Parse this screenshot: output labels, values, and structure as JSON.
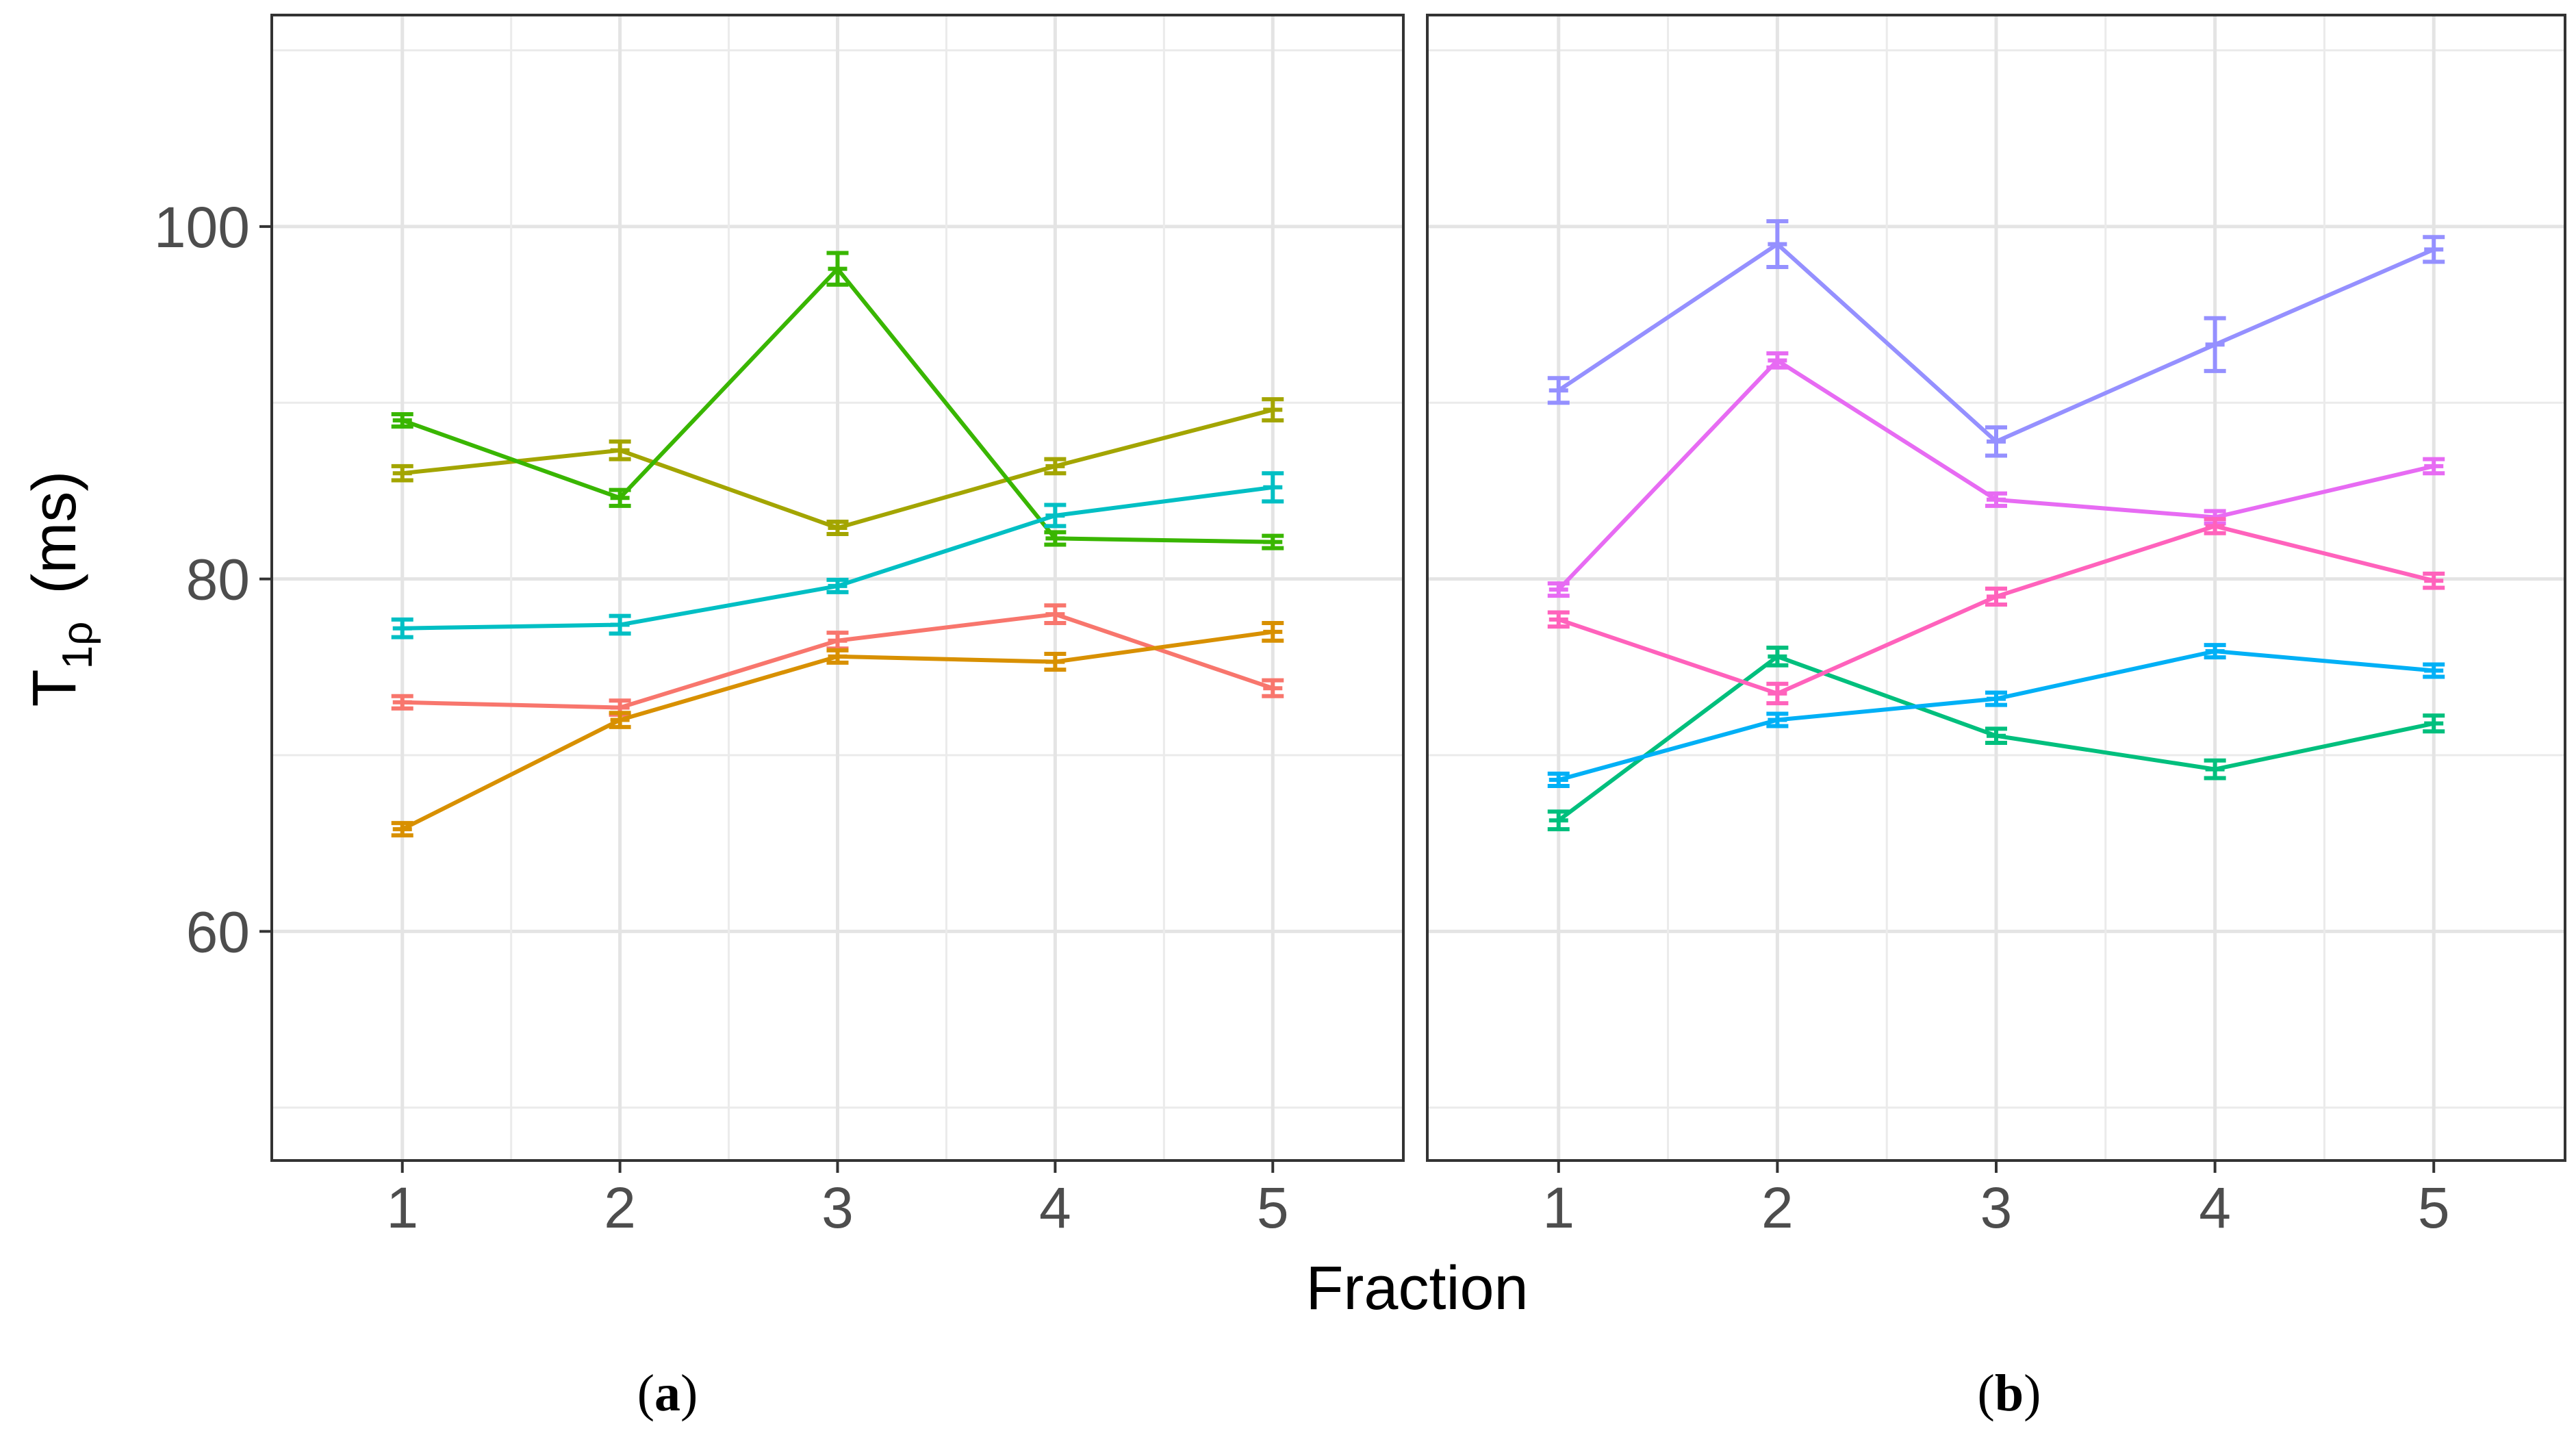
{
  "chart_data": [
    {
      "type": "line",
      "panel": "a",
      "caption_open": "(",
      "caption_letter": "a",
      "caption_close": ")",
      "x": [
        1,
        2,
        3,
        4,
        5
      ],
      "ylim": [
        47,
        112
      ],
      "series": [
        {
          "color": "#F8766D",
          "values": [
            73.0,
            72.7,
            76.5,
            78.0,
            73.8
          ],
          "errors": [
            0.35,
            0.4,
            0.45,
            0.5,
            0.45
          ]
        },
        {
          "color": "#D89000",
          "values": [
            65.8,
            72.0,
            75.6,
            75.3,
            77.0
          ],
          "errors": [
            0.35,
            0.4,
            0.35,
            0.45,
            0.5
          ]
        },
        {
          "color": "#A3A500",
          "values": [
            86.0,
            87.3,
            82.9,
            86.4,
            89.6
          ],
          "errors": [
            0.4,
            0.5,
            0.35,
            0.4,
            0.6
          ]
        },
        {
          "color": "#39B600",
          "values": [
            89.0,
            84.6,
            97.6,
            82.3,
            82.1
          ],
          "errors": [
            0.35,
            0.45,
            0.9,
            0.35,
            0.35
          ]
        },
        {
          "color": "#00BFC4",
          "values": [
            77.2,
            77.4,
            79.6,
            83.6,
            85.2
          ],
          "errors": [
            0.5,
            0.5,
            0.35,
            0.6,
            0.8
          ]
        }
      ]
    },
    {
      "type": "line",
      "panel": "b",
      "caption_open": "(",
      "caption_letter": "b",
      "caption_close": ")",
      "x": [
        1,
        2,
        3,
        4,
        5
      ],
      "ylim": [
        47,
        112
      ],
      "series": [
        {
          "color": "#00BF7D",
          "values": [
            66.3,
            75.6,
            71.1,
            69.2,
            71.8
          ],
          "errors": [
            0.5,
            0.5,
            0.4,
            0.5,
            0.45
          ]
        },
        {
          "color": "#00B0F6",
          "values": [
            68.6,
            72.0,
            73.2,
            75.9,
            74.8
          ],
          "errors": [
            0.35,
            0.35,
            0.35,
            0.35,
            0.35
          ]
        },
        {
          "color": "#9590FF",
          "values": [
            90.7,
            99.0,
            87.8,
            93.3,
            98.7
          ],
          "errors": [
            0.7,
            1.3,
            0.8,
            1.5,
            0.7
          ]
        },
        {
          "color": "#E76BF3",
          "values": [
            79.4,
            92.4,
            84.5,
            83.5,
            86.4
          ],
          "errors": [
            0.35,
            0.4,
            0.35,
            0.35,
            0.4
          ]
        },
        {
          "color": "#FF62BC",
          "values": [
            77.7,
            73.5,
            79.0,
            83.0,
            79.9
          ],
          "errors": [
            0.4,
            0.55,
            0.45,
            0.4,
            0.4
          ]
        }
      ]
    }
  ],
  "axes": {
    "y_ticks": [
      60,
      80,
      100
    ],
    "y_minor": [
      50,
      70,
      90,
      110
    ],
    "x_ticks": [
      1,
      2,
      3,
      4,
      5
    ],
    "y_title_main": "T",
    "y_title_sub": "1ρ",
    "y_title_units": "(ms)",
    "x_title": "Fraction"
  }
}
